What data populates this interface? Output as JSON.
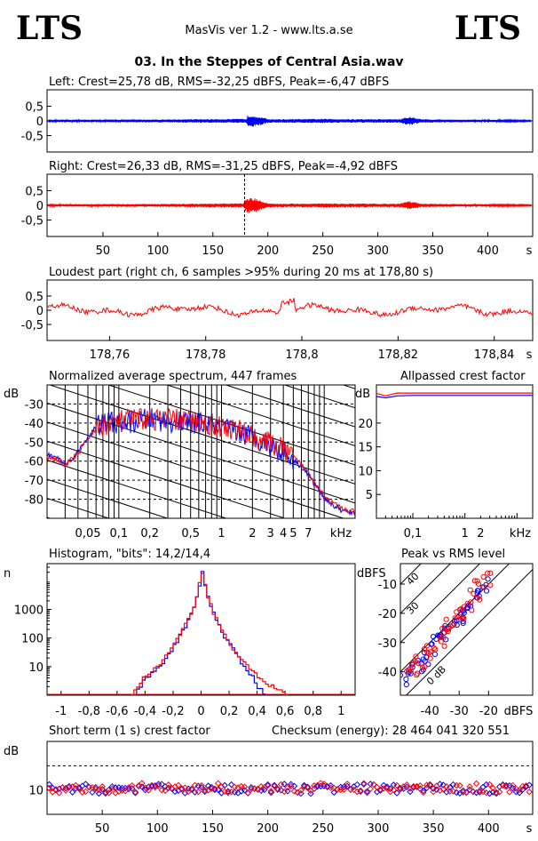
{
  "header": {
    "logo_left": "LTS",
    "logo_right": "LTS",
    "app_title": "MasVis ver 1.2 - www.lts.a.se",
    "file_title": "03. In the Steppes of Central Asia.wav"
  },
  "colors": {
    "left": "#0000ff",
    "right": "#ff0000",
    "grid": "#000000"
  },
  "chart_data": [
    {
      "id": "left-waveform",
      "type": "line",
      "title": "Left: Crest=25,78 dB, RMS=-32,25 dBFS, Peak=-6,47 dBFS",
      "yticks": [
        "0,5",
        "0",
        "-0,5"
      ],
      "ylim": [
        -1,
        1
      ],
      "xlim": [
        0,
        440
      ],
      "envelope": {
        "x": [
          0,
          100,
          180,
          182,
          185,
          190,
          195,
          200,
          205,
          220,
          250,
          280,
          320,
          325,
          330,
          335,
          340,
          360,
          400,
          440
        ],
        "amp": [
          0.04,
          0.05,
          0.07,
          0.2,
          0.22,
          0.18,
          0.12,
          0.07,
          0.06,
          0.06,
          0.07,
          0.06,
          0.06,
          0.12,
          0.14,
          0.1,
          0.06,
          0.05,
          0.04,
          0.02
        ]
      }
    },
    {
      "id": "right-waveform",
      "type": "line",
      "title": "Right: Crest=26,33 dB, RMS=-31,25 dBFS, Peak=-4,92 dBFS",
      "yticks": [
        "0,5",
        "0",
        "-0,5"
      ],
      "xticks": [
        "50",
        "100",
        "150",
        "200",
        "250",
        "300",
        "350",
        "400"
      ],
      "xunit": "s",
      "ylim": [
        -1,
        1
      ],
      "xlim": [
        0,
        440
      ],
      "loudest_marker_s": 178.8,
      "envelope": {
        "x": [
          0,
          100,
          178,
          180,
          185,
          190,
          195,
          200,
          205,
          220,
          250,
          280,
          320,
          325,
          330,
          335,
          340,
          360,
          400,
          440
        ],
        "amp": [
          0.04,
          0.05,
          0.07,
          0.24,
          0.26,
          0.22,
          0.14,
          0.08,
          0.06,
          0.06,
          0.07,
          0.06,
          0.06,
          0.12,
          0.14,
          0.1,
          0.06,
          0.05,
          0.04,
          0.02
        ]
      }
    },
    {
      "id": "loudest-part",
      "type": "line",
      "title": "Loudest part (right ch, 6 samples >95% during 20 ms at 178,80 s)",
      "yticks": [
        "0,5",
        "0",
        "-0,5"
      ],
      "xticks": [
        "178,76",
        "178,78",
        "178,8",
        "178,82",
        "178,84"
      ],
      "xunit": "s",
      "xlim": [
        178.747,
        178.848
      ],
      "ylim": [
        -1,
        1
      ]
    },
    {
      "id": "average-spectrum",
      "type": "line",
      "title": "Normalized average spectrum, 447 frames",
      "ylabel": "dB",
      "yticks": [
        "-30",
        "-40",
        "-50",
        "-60",
        "-70",
        "-80"
      ],
      "xticks": [
        "0,05",
        "0,1",
        "0,2",
        "0,5",
        "1",
        "2",
        "3",
        "4",
        "5",
        "7"
      ],
      "xunit": "kHz",
      "xscale": "log",
      "xlim": [
        0.02,
        20
      ],
      "ylim": [
        -90,
        -20
      ],
      "series": [
        {
          "color": "#0000ff",
          "x": [
            0.02,
            0.025,
            0.03,
            0.04,
            0.05,
            0.06,
            0.08,
            0.1,
            0.15,
            0.2,
            0.3,
            0.5,
            0.8,
            1,
            1.5,
            2,
            3,
            4,
            5,
            6,
            7,
            8,
            10,
            12,
            15,
            20
          ],
          "y": [
            -57,
            -58,
            -62,
            -55,
            -47,
            -42,
            -39,
            -40,
            -39,
            -38,
            -39,
            -40,
            -41,
            -43,
            -45,
            -47,
            -52,
            -55,
            -59,
            -63,
            -67,
            -72,
            -79,
            -83,
            -86,
            -88
          ]
        },
        {
          "color": "#ff0000",
          "x": [
            0.02,
            0.025,
            0.03,
            0.04,
            0.05,
            0.06,
            0.08,
            0.1,
            0.15,
            0.2,
            0.3,
            0.5,
            0.8,
            1,
            1.5,
            2,
            3,
            4,
            5,
            6,
            7,
            8,
            10,
            12,
            15,
            20
          ],
          "y": [
            -58,
            -59,
            -62,
            -56,
            -48,
            -43,
            -40,
            -39,
            -38,
            -38,
            -38,
            -39,
            -41,
            -42,
            -44,
            -47,
            -51,
            -54,
            -58,
            -62,
            -66,
            -71,
            -78,
            -82,
            -85,
            -87
          ]
        }
      ]
    },
    {
      "id": "allpassed-crest",
      "type": "line",
      "title": "Allpassed crest factor",
      "ylabel": "dB",
      "yticks": [
        "20",
        "15",
        "10",
        "5"
      ],
      "xticks": [
        "0,1",
        "1",
        "2"
      ],
      "xunit": "kHz",
      "xscale": "log",
      "xlim": [
        0.02,
        20
      ],
      "ylim": [
        0,
        28
      ],
      "series": [
        {
          "color": "#0000ff",
          "x": [
            0.02,
            0.03,
            0.05,
            0.1,
            0.5,
            1,
            5,
            20
          ],
          "y": [
            25.6,
            25.3,
            25.7,
            25.8,
            25.8,
            25.8,
            25.8,
            25.8
          ]
        },
        {
          "color": "#ff0000",
          "x": [
            0.02,
            0.03,
            0.05,
            0.1,
            0.5,
            1,
            5,
            20
          ],
          "y": [
            26.2,
            25.7,
            26.3,
            26.3,
            26.3,
            26.3,
            26.3,
            26.3
          ]
        }
      ]
    },
    {
      "id": "histogram",
      "type": "line",
      "title": "Histogram, \"bits\": 14,2/14,4",
      "ylabel": "n",
      "yticks": [
        "1000",
        "100",
        "10"
      ],
      "xticks": [
        "-1",
        "-0,8",
        "-0,6",
        "-0,4",
        "-0,2",
        "0",
        "0,2",
        "0,4",
        "0,6",
        "0,8",
        "1"
      ],
      "yscale": "log",
      "xlim": [
        -1.1,
        1.1
      ],
      "ylim": [
        1,
        40000
      ],
      "series": [
        {
          "color": "#0000ff",
          "x": [
            -0.48,
            -0.42,
            -0.35,
            -0.3,
            -0.25,
            -0.2,
            -0.15,
            -0.1,
            -0.05,
            -0.02,
            0,
            0.02,
            0.05,
            0.1,
            0.15,
            0.2,
            0.25,
            0.3,
            0.35,
            0.4,
            0.45
          ],
          "y": [
            1,
            3,
            6,
            10,
            22,
            55,
            140,
            420,
            1800,
            7000,
            20000,
            7000,
            1800,
            420,
            140,
            55,
            22,
            10,
            5,
            2,
            1
          ]
        },
        {
          "color": "#ff0000",
          "x": [
            -0.5,
            -0.44,
            -0.38,
            -0.32,
            -0.26,
            -0.2,
            -0.15,
            -0.1,
            -0.05,
            -0.02,
            0,
            0.02,
            0.05,
            0.1,
            0.15,
            0.2,
            0.26,
            0.32,
            0.38,
            0.44,
            0.6
          ],
          "y": [
            1,
            3,
            6,
            10,
            22,
            60,
            150,
            450,
            1900,
            7500,
            21000,
            7500,
            1900,
            450,
            150,
            60,
            22,
            10,
            6,
            3,
            1
          ]
        }
      ]
    },
    {
      "id": "peak-vs-rms",
      "type": "scatter",
      "title": "Peak vs RMS level",
      "ylabel": "dBFS",
      "xunit": "dBFS",
      "yticks": [
        "-10",
        "-20",
        "-30",
        "-40"
      ],
      "xticks": [
        "-40",
        "-30",
        "-20"
      ],
      "diagonal_labels": [
        "40",
        "30",
        "0 dB"
      ],
      "xlim": [
        -50,
        -5
      ],
      "ylim": [
        -48,
        -3
      ],
      "points": [
        {
          "channel": "left",
          "rms": -48,
          "peak": -43
        },
        {
          "channel": "left",
          "rms": -46,
          "peak": -40
        },
        {
          "channel": "left",
          "rms": -44,
          "peak": -38
        },
        {
          "channel": "left",
          "rms": -42,
          "peak": -35
        },
        {
          "channel": "left",
          "rms": -40,
          "peak": -33
        },
        {
          "channel": "left",
          "rms": -38,
          "peak": -30
        },
        {
          "channel": "left",
          "rms": -36,
          "peak": -28
        },
        {
          "channel": "left",
          "rms": -34,
          "peak": -26
        },
        {
          "channel": "left",
          "rms": -32,
          "peak": -23
        },
        {
          "channel": "left",
          "rms": -30,
          "peak": -21
        },
        {
          "channel": "left",
          "rms": -28,
          "peak": -19
        },
        {
          "channel": "left",
          "rms": -26,
          "peak": -16
        },
        {
          "channel": "left",
          "rms": -24,
          "peak": -13
        },
        {
          "channel": "left",
          "rms": -22,
          "peak": -10
        },
        {
          "channel": "right",
          "rms": -47,
          "peak": -41
        },
        {
          "channel": "right",
          "rms": -45,
          "peak": -39
        },
        {
          "channel": "right",
          "rms": -43,
          "peak": -36
        },
        {
          "channel": "right",
          "rms": -41,
          "peak": -34
        },
        {
          "channel": "right",
          "rms": -39,
          "peak": -31
        },
        {
          "channel": "right",
          "rms": -37,
          "peak": -29
        },
        {
          "channel": "right",
          "rms": -35,
          "peak": -27
        },
        {
          "channel": "right",
          "rms": -33,
          "peak": -24
        },
        {
          "channel": "right",
          "rms": -31,
          "peak": -22
        },
        {
          "channel": "right",
          "rms": -29,
          "peak": -20
        },
        {
          "channel": "right",
          "rms": -27,
          "peak": -17
        },
        {
          "channel": "right",
          "rms": -25,
          "peak": -14
        },
        {
          "channel": "right",
          "rms": -23,
          "peak": -11
        },
        {
          "channel": "right",
          "rms": -21,
          "peak": -8
        }
      ]
    },
    {
      "id": "short-term-crest",
      "type": "scatter",
      "title": "Short term (1 s) crest factor",
      "annotation": "Checksum (energy):   28 464 041 320 551",
      "ylabel": "dB",
      "yticks": [
        "10"
      ],
      "xticks": [
        "50",
        "100",
        "150",
        "200",
        "250",
        "300",
        "350",
        "400"
      ],
      "xunit": "s",
      "xlim": [
        0,
        440
      ],
      "ylim": [
        0,
        30
      ],
      "reference_dB": 20,
      "left_mean_dB": 10.5,
      "right_mean_dB": 10.8
    }
  ]
}
